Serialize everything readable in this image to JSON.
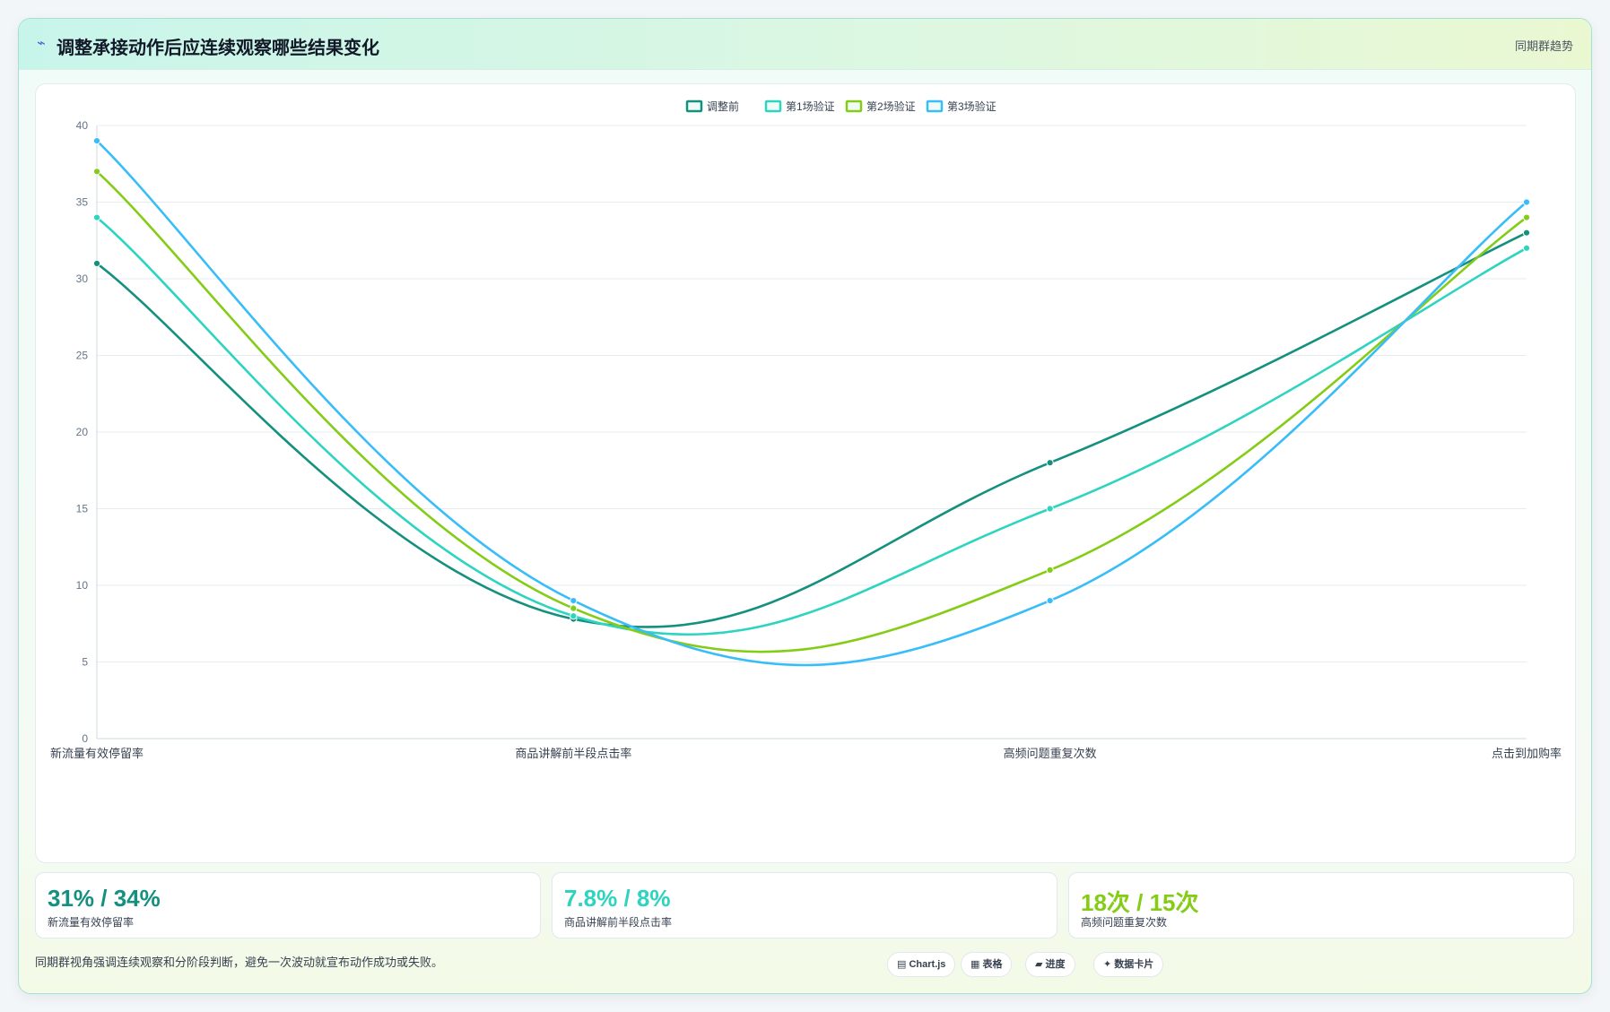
{
  "header": {
    "title": "调整承接动作后应连续观察哪些结果变化",
    "title_icon": "trend-icon",
    "tag": "同期群趋势"
  },
  "chart_data": {
    "type": "line",
    "categories": [
      "新流量有效停留率",
      "商品讲解前半段点击率",
      "高频问题重复次数",
      "点击到加购率"
    ],
    "series": [
      {
        "name": "调整前",
        "color": "#14907f",
        "values": [
          31,
          7.8,
          18,
          33
        ]
      },
      {
        "name": "第1场验证",
        "color": "#2dd4bf",
        "values": [
          34,
          8,
          15,
          32
        ]
      },
      {
        "name": "第2场验证",
        "color": "#84cc16",
        "values": [
          37,
          8.5,
          11,
          34
        ]
      },
      {
        "name": "第3场验证",
        "color": "#38bdf8",
        "values": [
          39,
          9,
          9,
          35
        ]
      }
    ],
    "ylim": [
      0,
      40
    ],
    "yticks": [
      0,
      5,
      10,
      15,
      20,
      25,
      30,
      35,
      40
    ],
    "grid": true,
    "legend": "top-center",
    "curve": "smooth"
  },
  "kpis": [
    {
      "value": "31% / 34%",
      "label": "新流量有效停留率",
      "color": "#14907f"
    },
    {
      "value": "7.8% / 8%",
      "label": "商品讲解前半段点击率",
      "color": "#2dd4bf"
    },
    {
      "value": "18次 / 15次",
      "label": "高频问题重复次数",
      "color": "#84cc16"
    }
  ],
  "footnote": "同期群视角强调连续观察和分阶段判断，避免一次波动就宣布动作成功或失败。",
  "tools": [
    {
      "icon": "chart-icon",
      "glyph": "▤",
      "label": "Chart.js"
    },
    {
      "icon": "table-icon",
      "glyph": "▦",
      "label": "表格"
    },
    {
      "icon": "progress-icon",
      "glyph": "▰",
      "label": "进度"
    },
    {
      "icon": "sparkle-icon",
      "glyph": "✦",
      "label": "数据卡片"
    }
  ]
}
